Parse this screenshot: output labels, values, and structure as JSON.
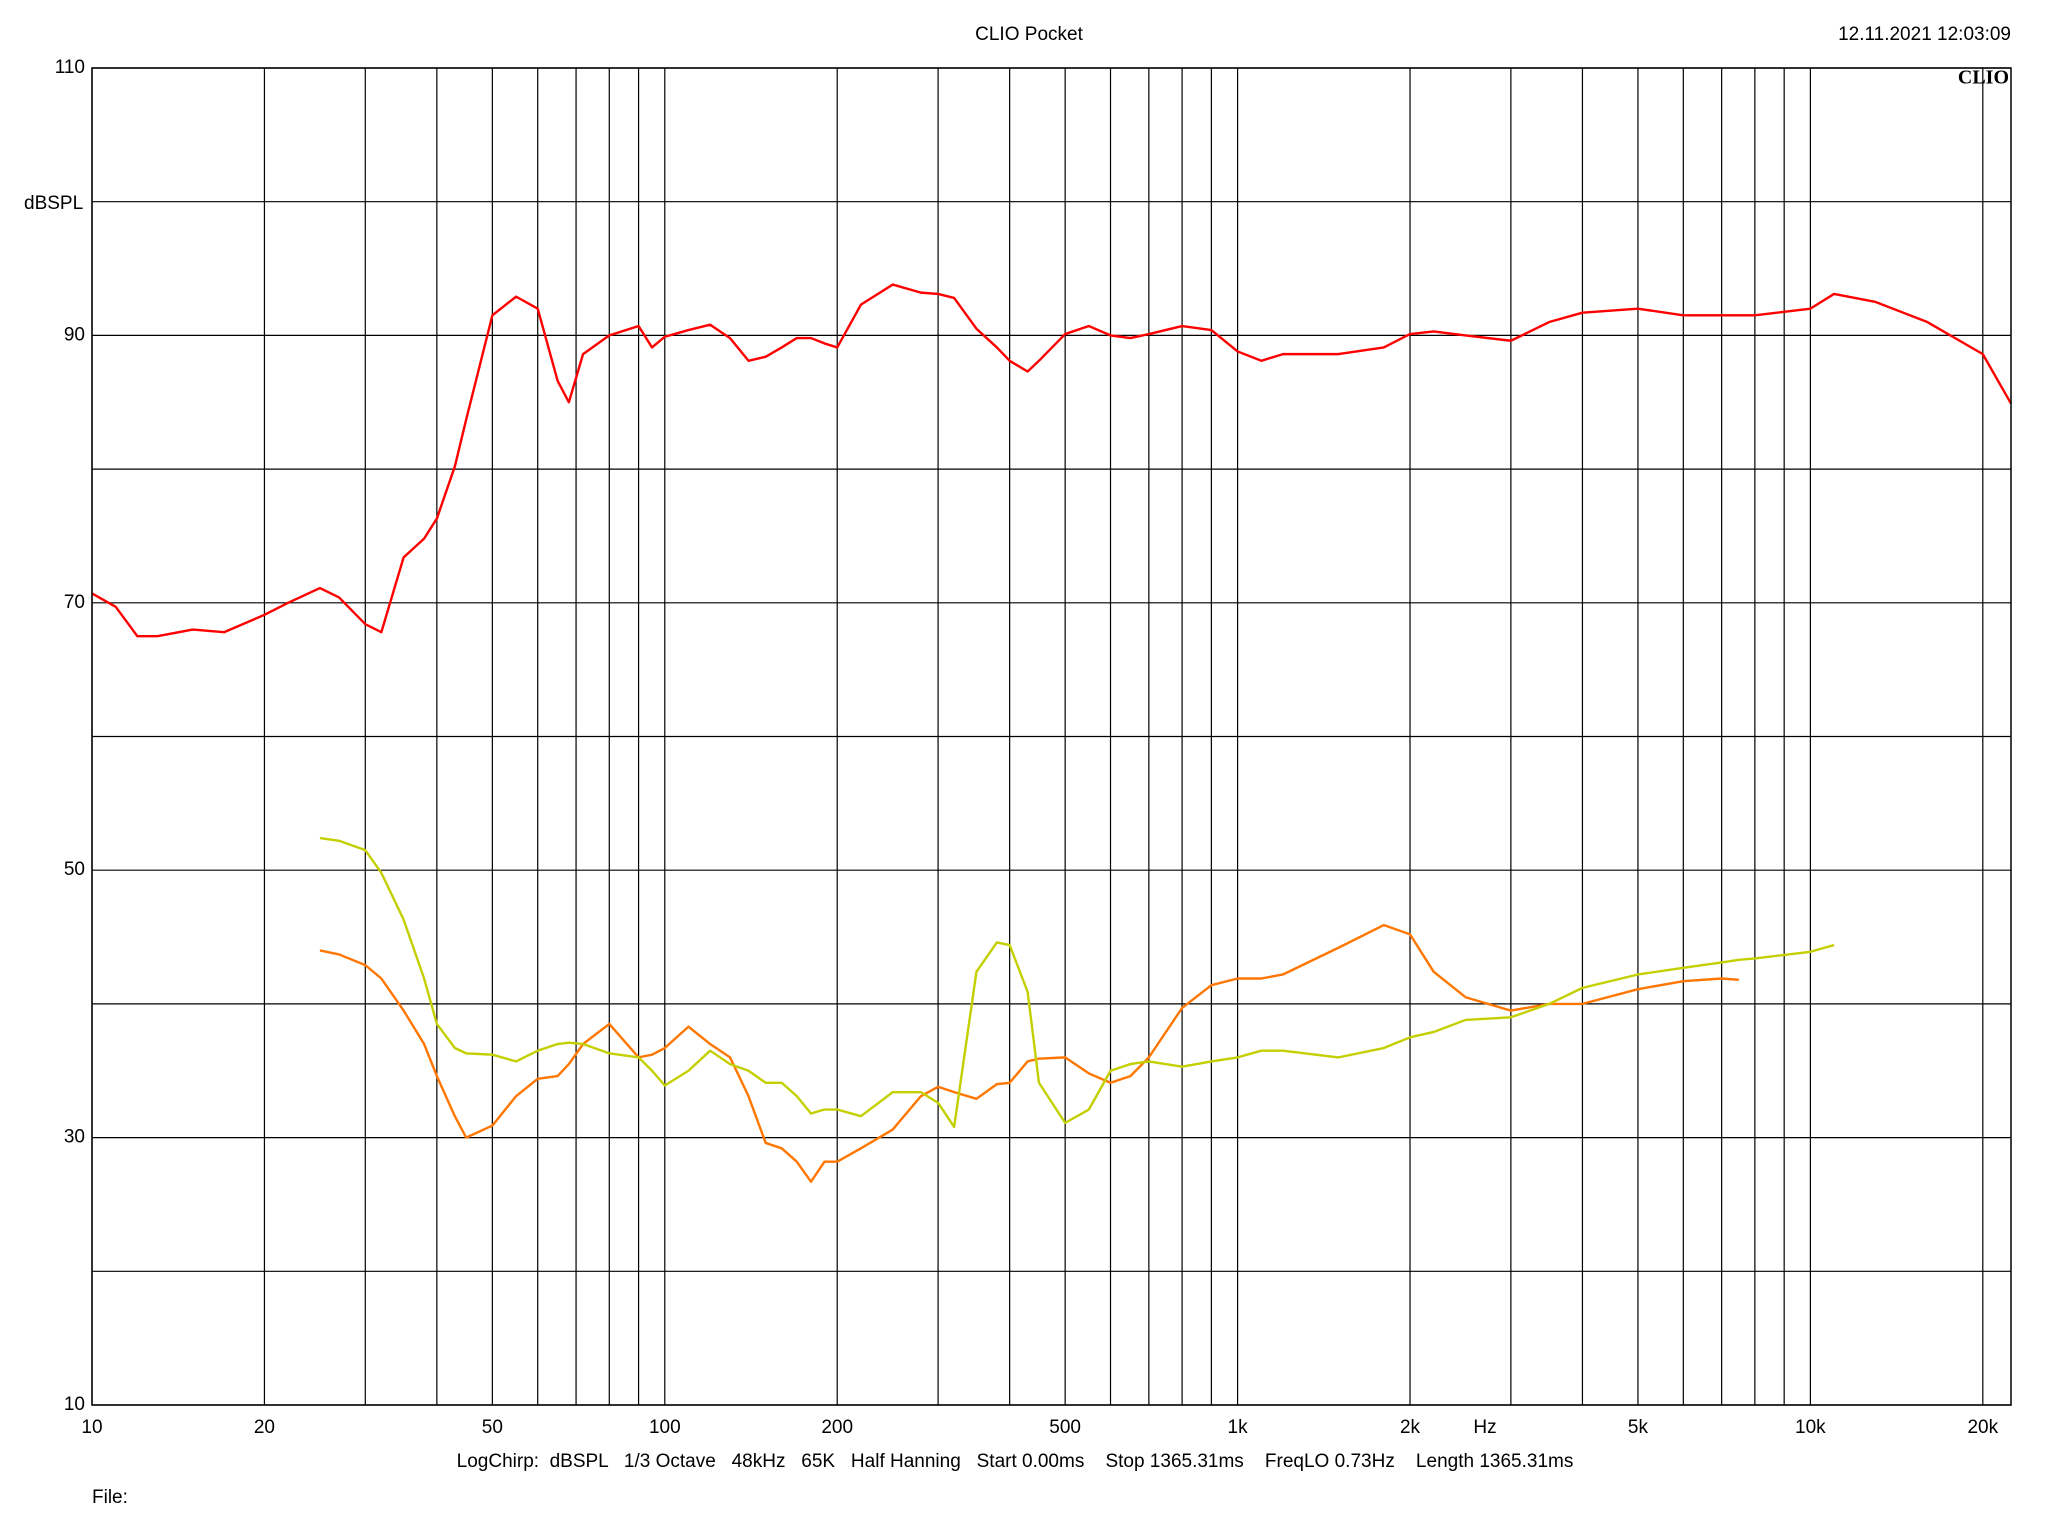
{
  "chart_data": {
    "type": "line",
    "title": "CLIO Pocket",
    "timestamp": "12.11.2021 12:03:09",
    "logo": "CLIO",
    "y_label": "dBSPL",
    "x_label": "Hz",
    "footer": "LogChirp:  dBSPL   1/3 Octave   48kHz   65K   Half Hanning   Start 0.00ms    Stop 1365.31ms    FreqLO 0.73Hz    Length 1365.31ms",
    "file_label": "File:",
    "log_x": true,
    "grid": true,
    "xlim": [
      10,
      22400
    ],
    "ylim": [
      10,
      110
    ],
    "yticks": [
      10,
      30,
      50,
      70,
      90,
      110
    ],
    "y_minor_ticks": [
      20,
      40,
      60,
      80,
      100
    ],
    "xticks": [
      10,
      20,
      50,
      100,
      200,
      500,
      {
        "value": 1000,
        "label": "1k"
      },
      {
        "value": 2000,
        "label": "2k"
      },
      {
        "value": 5000,
        "label": "5k"
      },
      {
        "value": 10000,
        "label": "10k"
      },
      {
        "value": 20000,
        "label": "20k"
      }
    ],
    "x_minor_ticks": [
      30,
      40,
      60,
      70,
      80,
      90,
      300,
      400,
      600,
      700,
      800,
      900,
      3000,
      4000,
      6000,
      7000,
      8000,
      9000
    ],
    "x": [
      10,
      11,
      12,
      13,
      15,
      17,
      20,
      22,
      25,
      27,
      30,
      32,
      35,
      38,
      40,
      43,
      45,
      50,
      55,
      60,
      65,
      68,
      72,
      80,
      90,
      95,
      100,
      110,
      120,
      130,
      140,
      150,
      160,
      170,
      180,
      190,
      200,
      220,
      250,
      280,
      300,
      320,
      350,
      380,
      400,
      430,
      450,
      500,
      550,
      600,
      650,
      700,
      800,
      900,
      1000,
      1100,
      1200,
      1500,
      1800,
      2000,
      2200,
      2500,
      3000,
      3500,
      4000,
      5000,
      6000,
      7000,
      7500,
      8000,
      10000,
      11000,
      13000,
      16000,
      20000,
      22400
    ],
    "series": [
      {
        "name": "red",
        "color": "#ff0000",
        "values": [
          70.7,
          69.7,
          67.5,
          67.5,
          68,
          67.8,
          69.1,
          70,
          71.1,
          70.4,
          68.4,
          67.8,
          73.4,
          74.8,
          76.3,
          80.2,
          83.7,
          91.5,
          92.9,
          92,
          86.6,
          85,
          88.6,
          90,
          90.7,
          89.1,
          89.9,
          90.4,
          90.8,
          89.8,
          88.1,
          88.4,
          89.1,
          89.8,
          89.8,
          89.4,
          89.1,
          92.3,
          93.8,
          93.2,
          93.1,
          92.8,
          90.5,
          89.1,
          88.1,
          87.3,
          88.1,
          90.1,
          90.7,
          90,
          89.8,
          90.1,
          90.7,
          90.4,
          88.8,
          88.1,
          88.6,
          88.6,
          89.1,
          90.1,
          90.3,
          90,
          89.6,
          91,
          91.7,
          92,
          91.5,
          91.5,
          91.5,
          91.5,
          92,
          93.1,
          92.5,
          91,
          88.6,
          84.9
        ]
      },
      {
        "name": "orange",
        "color": "#ff7700",
        "values": [
          null,
          null,
          null,
          null,
          null,
          null,
          null,
          null,
          44,
          43.7,
          42.9,
          41.9,
          39.5,
          37,
          34.6,
          31.6,
          30,
          30.9,
          33.1,
          34.4,
          34.6,
          35.5,
          37,
          38.5,
          36,
          36.2,
          36.7,
          38.3,
          37,
          36,
          33.1,
          29.6,
          29.2,
          28.2,
          26.7,
          28.2,
          28.2,
          29.2,
          30.6,
          33.1,
          33.8,
          33.4,
          32.9,
          34,
          34.1,
          35.7,
          35.9,
          36,
          34.8,
          34.1,
          34.6,
          36,
          39.7,
          41.4,
          41.9,
          41.9,
          42.2,
          44.2,
          45.9,
          45.2,
          42.4,
          40.5,
          39.5,
          40,
          40,
          41.1,
          41.7,
          41.9,
          41.8,
          null,
          null,
          null,
          null,
          null,
          null,
          null
        ]
      },
      {
        "name": "yellow",
        "color": "#c4cf00",
        "values": [
          null,
          null,
          null,
          null,
          null,
          null,
          null,
          null,
          52.4,
          52.2,
          51.5,
          49.8,
          46.3,
          41.9,
          38.5,
          36.7,
          36.3,
          36.2,
          35.7,
          36.5,
          37,
          37.1,
          37,
          36.3,
          36,
          35,
          33.9,
          35,
          36.5,
          35.5,
          35,
          34.1,
          34.1,
          33.1,
          31.8,
          32.1,
          32.1,
          31.6,
          33.4,
          33.4,
          32.6,
          30.8,
          42.4,
          44.6,
          44.4,
          40.9,
          34.1,
          31.1,
          32.1,
          35,
          35.5,
          35.7,
          35.3,
          35.7,
          36,
          36.5,
          36.5,
          36,
          36.7,
          37.5,
          37.9,
          38.8,
          39,
          40,
          41.2,
          42.2,
          42.7,
          43.1,
          43.3,
          43.4,
          43.9,
          44.4,
          null,
          null,
          null,
          null
        ]
      }
    ]
  }
}
